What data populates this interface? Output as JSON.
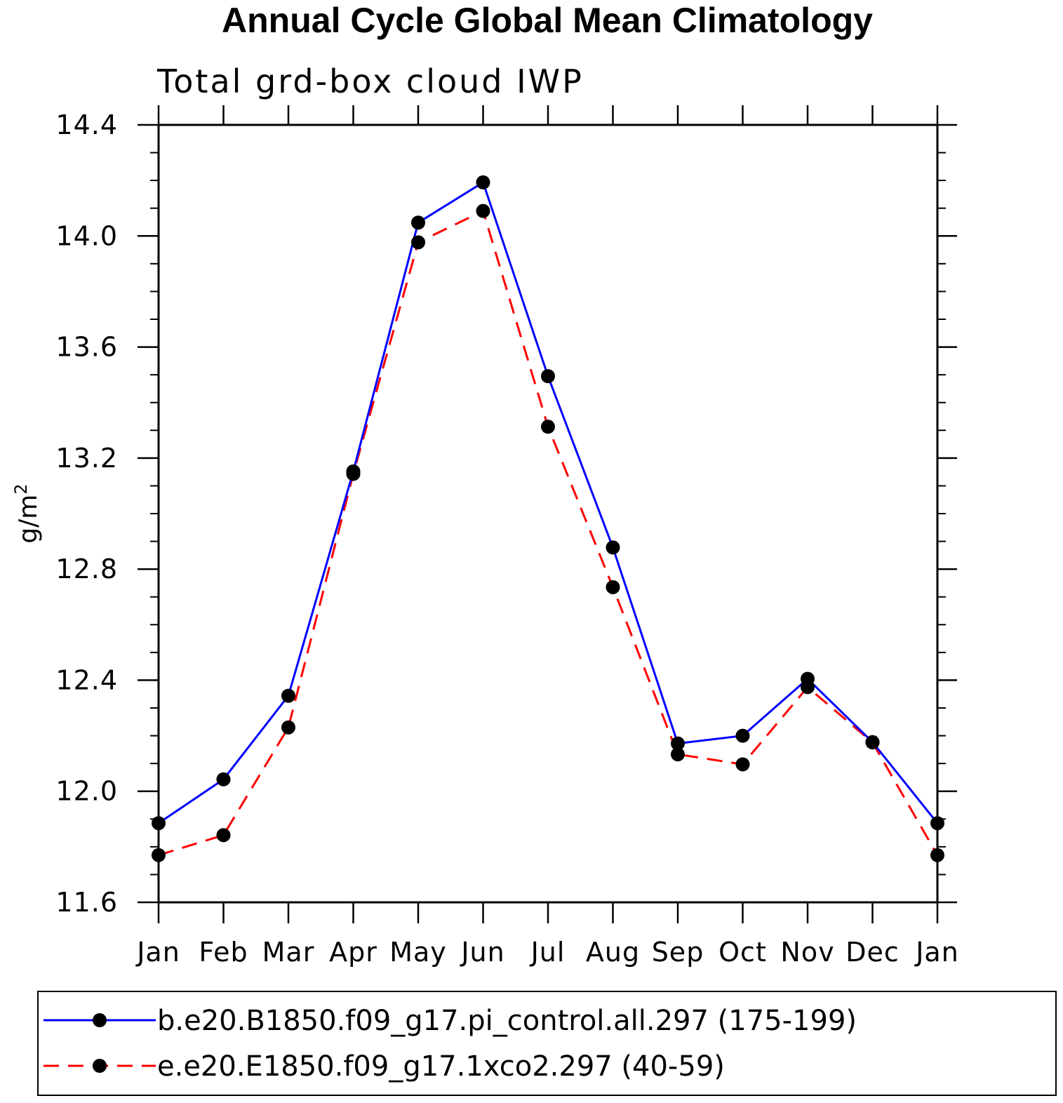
{
  "chart_data": {
    "type": "line",
    "title": "Annual Cycle Global Mean Climatology",
    "subtitle": "Total grd-box cloud IWP",
    "ylabel": "g/m",
    "ylabel_superscript": "2",
    "xlabel": "",
    "categories": [
      "Jan",
      "Feb",
      "Mar",
      "Apr",
      "May",
      "Jun",
      "Jul",
      "Aug",
      "Sep",
      "Oct",
      "Nov",
      "Dec",
      "Jan"
    ],
    "ylim": [
      11.6,
      14.4
    ],
    "yticks": [
      {
        "value": 11.6,
        "label": "11.6"
      },
      {
        "value": 12.0,
        "label": "12.0"
      },
      {
        "value": 12.4,
        "label": "12.4"
      },
      {
        "value": 12.8,
        "label": "12.8"
      },
      {
        "value": 13.2,
        "label": "13.2"
      },
      {
        "value": 13.6,
        "label": "13.6"
      },
      {
        "value": 14.0,
        "label": "14.0"
      },
      {
        "value": 14.4,
        "label": "14.4"
      }
    ],
    "y_minor_step": 0.1,
    "grid": false,
    "legend_placement": "bottom",
    "series": [
      {
        "name": "b.e20.B1850.f09_g17.pi_control.all.297 (175-199)",
        "color": "#0000ff",
        "line_style": "solid",
        "marker": "filled-circle",
        "values": [
          11.885,
          12.043,
          12.344,
          13.152,
          14.048,
          14.193,
          13.495,
          12.878,
          12.172,
          12.2,
          12.405,
          12.177,
          11.885
        ]
      },
      {
        "name": "e.e20.E1850.f09_g17.1xco2.297 (40-59)",
        "color": "#ff0000",
        "line_style": "dashed",
        "marker": "filled-circle",
        "values": [
          11.77,
          11.842,
          12.23,
          13.143,
          13.977,
          14.09,
          13.313,
          12.735,
          12.133,
          12.097,
          12.375,
          12.176,
          11.77
        ]
      }
    ]
  }
}
